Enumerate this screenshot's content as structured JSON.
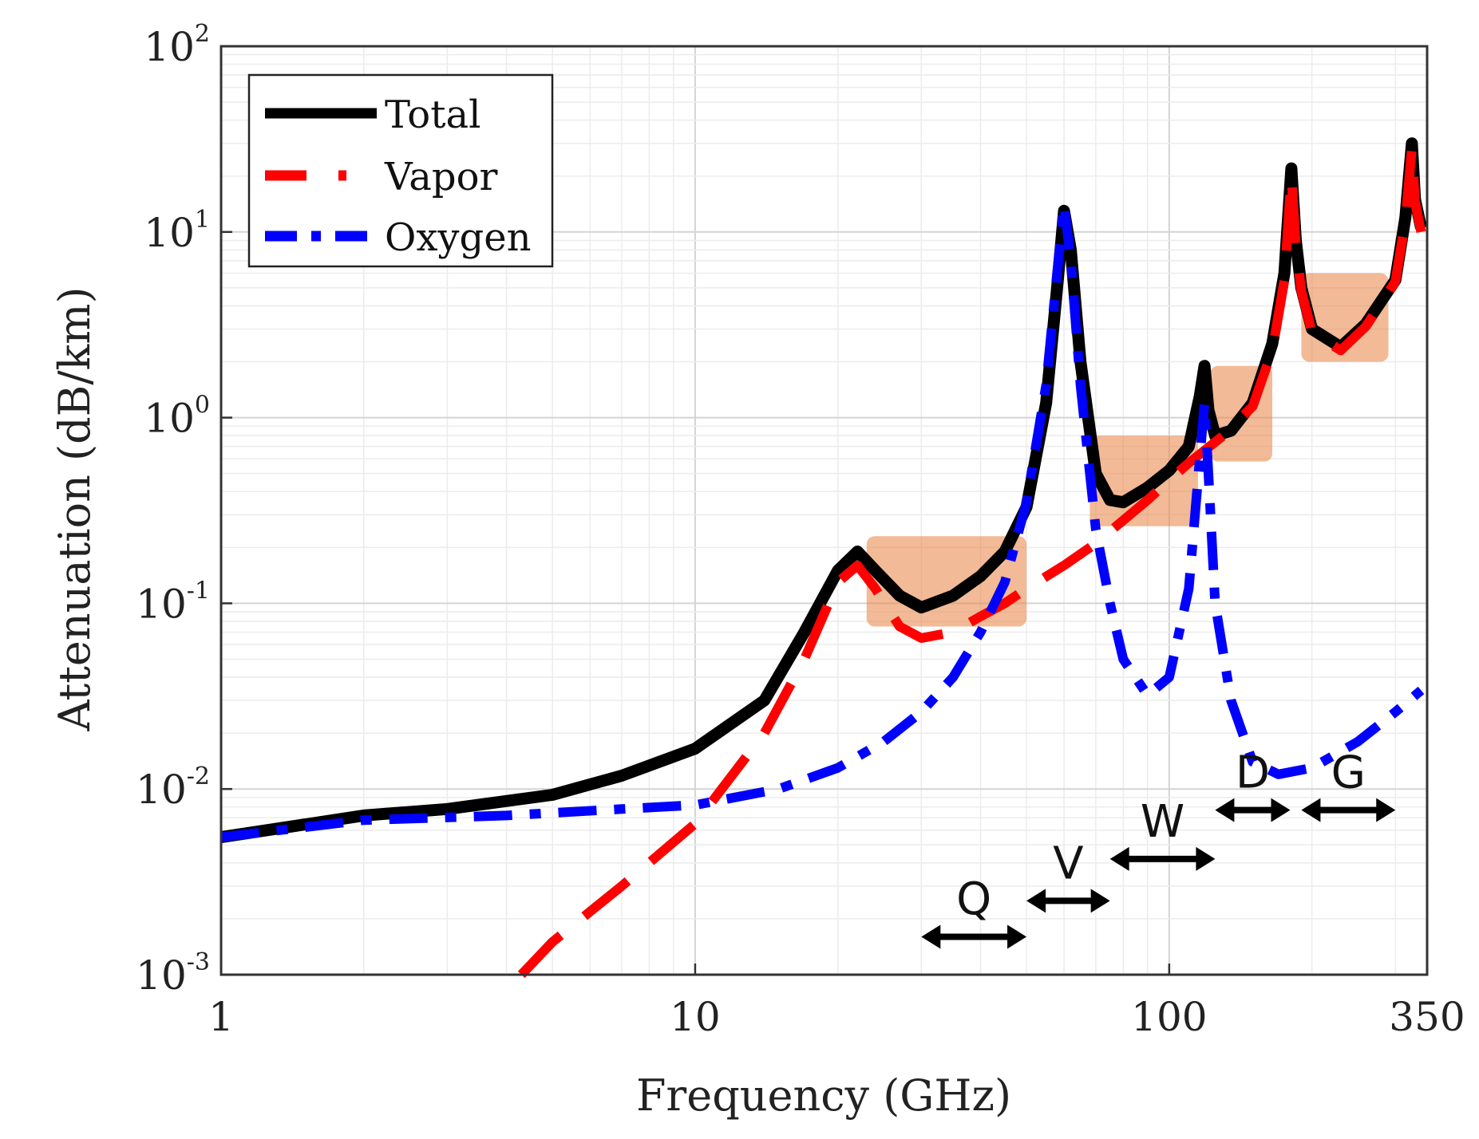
{
  "chart_data": {
    "type": "line",
    "title": "",
    "xlabel": "Frequency (GHz)",
    "ylabel": "Attenuation (dB/km)",
    "xscale": "log",
    "yscale": "log",
    "xlim": [
      1,
      350
    ],
    "ylim": [
      0.001,
      100
    ],
    "grid": true,
    "legend_position": "top-left",
    "x_ticks": [
      {
        "value": 1,
        "label": "1"
      },
      {
        "value": 10,
        "label": "10"
      },
      {
        "value": 100,
        "label": "100"
      },
      {
        "value": 350,
        "label": "350"
      }
    ],
    "y_ticks": [
      {
        "value": 0.001,
        "base": "10",
        "exp": "-3"
      },
      {
        "value": 0.01,
        "base": "10",
        "exp": "-2"
      },
      {
        "value": 0.1,
        "base": "10",
        "exp": "-1"
      },
      {
        "value": 1,
        "base": "10",
        "exp": "0"
      },
      {
        "value": 10,
        "base": "10",
        "exp": "1"
      },
      {
        "value": 100,
        "base": "10",
        "exp": "2"
      }
    ],
    "series": [
      {
        "name": "Total",
        "color": "#000000",
        "style": "solid",
        "points": [
          [
            1,
            0.0055
          ],
          [
            2,
            0.0072
          ],
          [
            3,
            0.0078
          ],
          [
            5,
            0.0093
          ],
          [
            7,
            0.0118
          ],
          [
            10,
            0.0165
          ],
          [
            14,
            0.03
          ],
          [
            17,
            0.07
          ],
          [
            20,
            0.15
          ],
          [
            22,
            0.19
          ],
          [
            24,
            0.15
          ],
          [
            27,
            0.11
          ],
          [
            30,
            0.095
          ],
          [
            35,
            0.11
          ],
          [
            40,
            0.14
          ],
          [
            45,
            0.19
          ],
          [
            50,
            0.33
          ],
          [
            55,
            1.2
          ],
          [
            58,
            5
          ],
          [
            60,
            13
          ],
          [
            62,
            8
          ],
          [
            65,
            2
          ],
          [
            70,
            0.5
          ],
          [
            75,
            0.36
          ],
          [
            80,
            0.35
          ],
          [
            90,
            0.42
          ],
          [
            100,
            0.52
          ],
          [
            110,
            0.7
          ],
          [
            116,
            1.3
          ],
          [
            118.7,
            1.9
          ],
          [
            121,
            1.1
          ],
          [
            125,
            0.8
          ],
          [
            135,
            0.85
          ],
          [
            150,
            1.2
          ],
          [
            165,
            2.5
          ],
          [
            175,
            6
          ],
          [
            181,
            22
          ],
          [
            185,
            9
          ],
          [
            190,
            5
          ],
          [
            200,
            3
          ],
          [
            230,
            2.4
          ],
          [
            260,
            3.2
          ],
          [
            300,
            5.5
          ],
          [
            315,
            12
          ],
          [
            325,
            30
          ],
          [
            330,
            15
          ],
          [
            340,
            10.5
          ]
        ]
      },
      {
        "name": "Vapor",
        "color": "#ff0000",
        "style": "dashed",
        "points": [
          [
            4.3,
            0.001
          ],
          [
            5,
            0.0015
          ],
          [
            7,
            0.003
          ],
          [
            10,
            0.0065
          ],
          [
            14,
            0.02
          ],
          [
            17,
            0.05
          ],
          [
            20,
            0.13
          ],
          [
            22,
            0.16
          ],
          [
            24,
            0.12
          ],
          [
            27,
            0.075
          ],
          [
            30,
            0.065
          ],
          [
            35,
            0.07
          ],
          [
            40,
            0.085
          ],
          [
            45,
            0.1
          ],
          [
            50,
            0.12
          ],
          [
            60,
            0.16
          ],
          [
            70,
            0.21
          ],
          [
            80,
            0.28
          ],
          [
            90,
            0.36
          ],
          [
            100,
            0.46
          ],
          [
            110,
            0.57
          ],
          [
            120,
            0.68
          ],
          [
            130,
            0.8
          ],
          [
            150,
            1.15
          ],
          [
            165,
            2.3
          ],
          [
            175,
            5.5
          ],
          [
            181,
            20
          ],
          [
            185,
            8.5
          ],
          [
            190,
            4.8
          ],
          [
            200,
            2.9
          ],
          [
            230,
            2.3
          ],
          [
            260,
            3.1
          ],
          [
            300,
            5.4
          ],
          [
            315,
            11.5
          ],
          [
            325,
            28
          ],
          [
            330,
            14.5
          ],
          [
            340,
            10
          ]
        ]
      },
      {
        "name": "Oxygen",
        "color": "#0000ff",
        "style": "dash-dot",
        "points": [
          [
            1,
            0.0055
          ],
          [
            2,
            0.0068
          ],
          [
            4,
            0.0072
          ],
          [
            7,
            0.0078
          ],
          [
            10,
            0.0082
          ],
          [
            15,
            0.01
          ],
          [
            20,
            0.013
          ],
          [
            25,
            0.018
          ],
          [
            30,
            0.026
          ],
          [
            35,
            0.04
          ],
          [
            40,
            0.07
          ],
          [
            45,
            0.13
          ],
          [
            50,
            0.35
          ],
          [
            55,
            1.5
          ],
          [
            58,
            6
          ],
          [
            60,
            14
          ],
          [
            62,
            7
          ],
          [
            65,
            1.5
          ],
          [
            70,
            0.25
          ],
          [
            75,
            0.1
          ],
          [
            80,
            0.05
          ],
          [
            90,
            0.032
          ],
          [
            100,
            0.04
          ],
          [
            110,
            0.12
          ],
          [
            116,
            0.6
          ],
          [
            118.7,
            1.2
          ],
          [
            121,
            0.5
          ],
          [
            125,
            0.1
          ],
          [
            135,
            0.03
          ],
          [
            150,
            0.014
          ],
          [
            170,
            0.012
          ],
          [
            200,
            0.013
          ],
          [
            250,
            0.018
          ],
          [
            300,
            0.026
          ],
          [
            340,
            0.034
          ]
        ]
      }
    ],
    "highlight_regions": [
      {
        "x": [
          23,
          50
        ],
        "y": [
          0.075,
          0.23
        ]
      },
      {
        "x": [
          68,
          115
        ],
        "y": [
          0.26,
          0.8
        ]
      },
      {
        "x": [
          122,
          165
        ],
        "y": [
          0.58,
          1.9
        ]
      },
      {
        "x": [
          190,
          290
        ],
        "y": [
          2.0,
          6.0
        ]
      }
    ],
    "bands": [
      {
        "label": "Q",
        "x": [
          30,
          50
        ],
        "y": 0.0016
      },
      {
        "label": "V",
        "x": [
          50,
          75
        ],
        "y": 0.0025
      },
      {
        "label": "W",
        "x": [
          75,
          125
        ],
        "y": 0.0042
      },
      {
        "label": "D",
        "x": [
          125,
          180
        ],
        "y": 0.0077
      },
      {
        "label": "G",
        "x": [
          190,
          300
        ],
        "y": 0.0077
      }
    ]
  }
}
